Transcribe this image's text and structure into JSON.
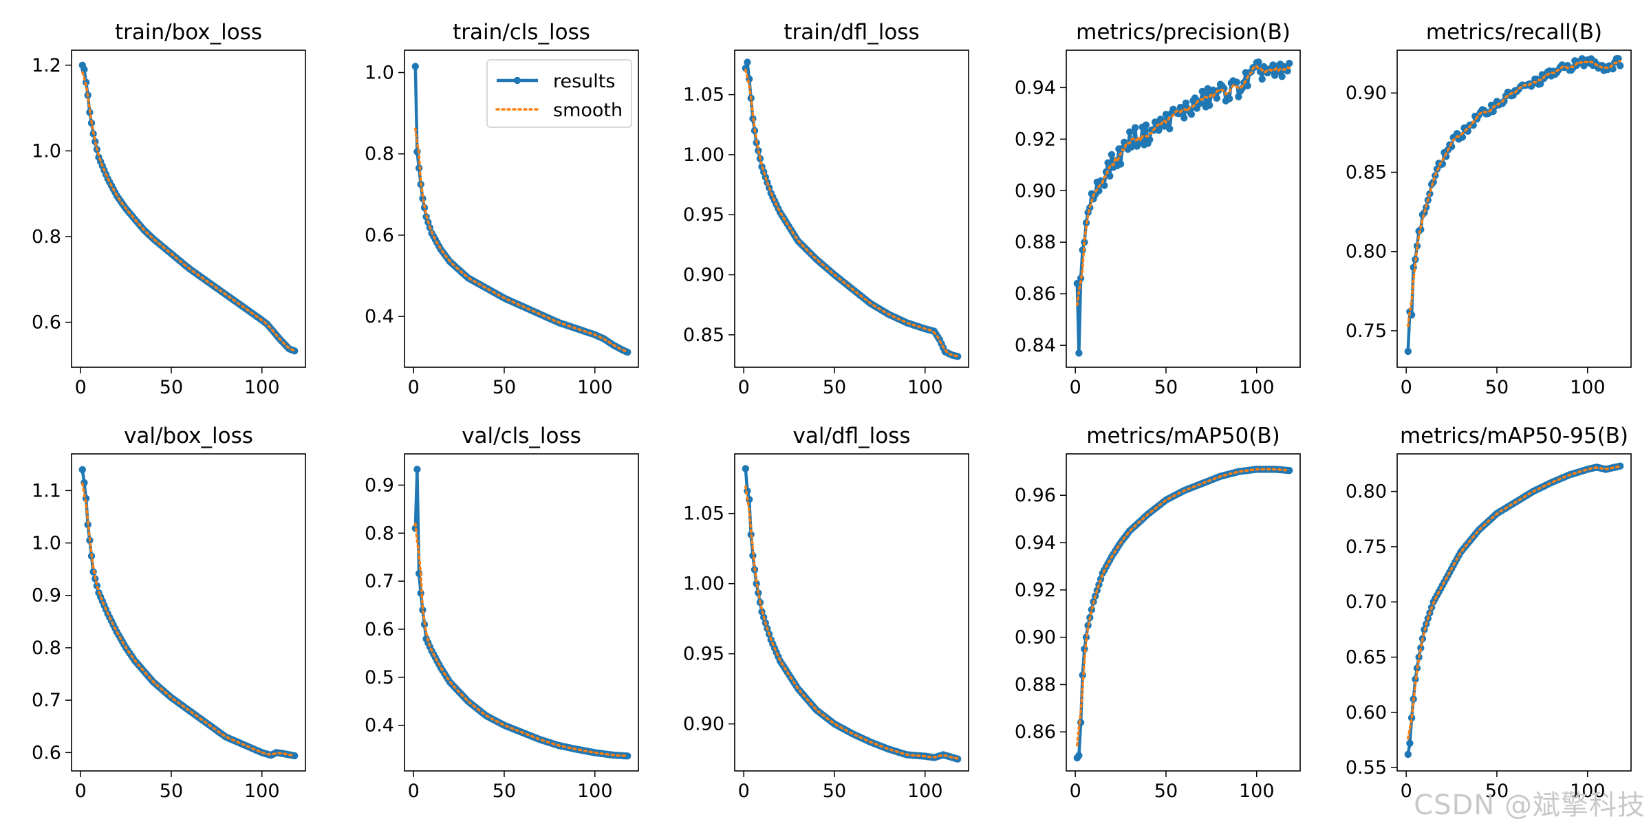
{
  "watermark": "CSDN @斌擎科技",
  "legend": {
    "results": "results",
    "smooth": "smooth"
  },
  "colors": {
    "results": "#1f77b4",
    "smooth": "#ff7f0e",
    "axes": "#000000"
  },
  "chart_data": [
    {
      "type": "line",
      "title": "train/box_loss",
      "xlim": [
        -5,
        124
      ],
      "ylim": [
        0.495,
        1.235
      ],
      "xticks": [
        0,
        50,
        100
      ],
      "yticks": [
        0.6,
        0.8,
        1.0,
        1.2
      ],
      "tick_decimals": 1,
      "n_epochs": 118,
      "series": [
        {
          "name": "results",
          "anchors": [
            [
              1,
              1.2
            ],
            [
              2,
              1.19
            ],
            [
              3,
              1.16
            ],
            [
              4,
              1.13
            ],
            [
              5,
              1.09
            ],
            [
              7,
              1.04
            ],
            [
              10,
              0.985
            ],
            [
              15,
              0.935
            ],
            [
              20,
              0.895
            ],
            [
              25,
              0.865
            ],
            [
              30,
              0.84
            ],
            [
              35,
              0.815
            ],
            [
              40,
              0.795
            ],
            [
              50,
              0.76
            ],
            [
              60,
              0.725
            ],
            [
              70,
              0.695
            ],
            [
              80,
              0.665
            ],
            [
              90,
              0.635
            ],
            [
              100,
              0.605
            ],
            [
              103,
              0.595
            ],
            [
              105,
              0.585
            ],
            [
              110,
              0.56
            ],
            [
              115,
              0.538
            ],
            [
              118,
              0.533
            ]
          ]
        }
      ]
    },
    {
      "type": "line",
      "title": "train/cls_loss",
      "xlim": [
        -5,
        124
      ],
      "ylim": [
        0.275,
        1.055
      ],
      "xticks": [
        0,
        50,
        100
      ],
      "yticks": [
        0.4,
        0.6,
        0.8,
        1.0
      ],
      "tick_decimals": 1,
      "n_epochs": 118,
      "legend": "top-right",
      "series": [
        {
          "name": "results",
          "anchors": [
            [
              1,
              1.015
            ],
            [
              2,
              0.805
            ],
            [
              3,
              0.765
            ],
            [
              4,
              0.725
            ],
            [
              5,
              0.69
            ],
            [
              7,
              0.645
            ],
            [
              10,
              0.605
            ],
            [
              15,
              0.565
            ],
            [
              20,
              0.535
            ],
            [
              25,
              0.515
            ],
            [
              30,
              0.495
            ],
            [
              40,
              0.47
            ],
            [
              50,
              0.445
            ],
            [
              60,
              0.425
            ],
            [
              70,
              0.405
            ],
            [
              80,
              0.385
            ],
            [
              90,
              0.37
            ],
            [
              100,
              0.355
            ],
            [
              105,
              0.345
            ],
            [
              110,
              0.33
            ],
            [
              115,
              0.318
            ],
            [
              118,
              0.312
            ]
          ]
        }
      ]
    },
    {
      "type": "line",
      "title": "train/dfl_loss",
      "xlim": [
        -5,
        124
      ],
      "ylim": [
        0.823,
        1.087
      ],
      "xticks": [
        0,
        50,
        100
      ],
      "yticks": [
        0.85,
        0.9,
        0.95,
        1.0,
        1.05
      ],
      "tick_decimals": 2,
      "n_epochs": 118,
      "series": [
        {
          "name": "results",
          "anchors": [
            [
              1,
              1.072
            ],
            [
              2,
              1.077
            ],
            [
              3,
              1.063
            ],
            [
              4,
              1.047
            ],
            [
              5,
              1.03
            ],
            [
              7,
              1.01
            ],
            [
              10,
              0.99
            ],
            [
              15,
              0.968
            ],
            [
              20,
              0.952
            ],
            [
              25,
              0.94
            ],
            [
              30,
              0.928
            ],
            [
              40,
              0.913
            ],
            [
              50,
              0.9
            ],
            [
              60,
              0.888
            ],
            [
              70,
              0.876
            ],
            [
              80,
              0.867
            ],
            [
              90,
              0.86
            ],
            [
              100,
              0.855
            ],
            [
              105,
              0.853
            ],
            [
              108,
              0.846
            ],
            [
              111,
              0.836
            ],
            [
              115,
              0.833
            ],
            [
              118,
              0.832
            ]
          ]
        }
      ]
    },
    {
      "type": "line",
      "title": "metrics/precision(B)",
      "xlim": [
        -5,
        124
      ],
      "ylim": [
        0.8315,
        0.9545
      ],
      "xticks": [
        0,
        50,
        100
      ],
      "yticks": [
        0.84,
        0.86,
        0.88,
        0.9,
        0.92,
        0.94
      ],
      "tick_decimals": 2,
      "n_epochs": 118,
      "noise": 0.004,
      "series": [
        {
          "name": "results",
          "anchors": [
            [
              1,
              0.864
            ],
            [
              2,
              0.837
            ],
            [
              3,
              0.866
            ],
            [
              4,
              0.877
            ],
            [
              5,
              0.88
            ],
            [
              7,
              0.895
            ],
            [
              10,
              0.898
            ],
            [
              15,
              0.905
            ],
            [
              20,
              0.91
            ],
            [
              25,
              0.914
            ],
            [
              30,
              0.92
            ],
            [
              40,
              0.922
            ],
            [
              50,
              0.927
            ],
            [
              60,
              0.931
            ],
            [
              70,
              0.935
            ],
            [
              80,
              0.938
            ],
            [
              90,
              0.94
            ],
            [
              100,
              0.946
            ],
            [
              105,
              0.947
            ],
            [
              110,
              0.945
            ],
            [
              118,
              0.947
            ]
          ]
        }
      ]
    },
    {
      "type": "line",
      "title": "metrics/recall(B)",
      "xlim": [
        -5,
        124
      ],
      "ylim": [
        0.727,
        0.927
      ],
      "xticks": [
        0,
        50,
        100
      ],
      "yticks": [
        0.75,
        0.8,
        0.85,
        0.9
      ],
      "tick_decimals": 2,
      "n_epochs": 118,
      "noise": 0.003,
      "series": [
        {
          "name": "results",
          "anchors": [
            [
              1,
              0.737
            ],
            [
              2,
              0.762
            ],
            [
              3,
              0.76
            ],
            [
              4,
              0.79
            ],
            [
              5,
              0.795
            ],
            [
              7,
              0.812
            ],
            [
              10,
              0.825
            ],
            [
              15,
              0.845
            ],
            [
              20,
              0.858
            ],
            [
              25,
              0.868
            ],
            [
              30,
              0.874
            ],
            [
              40,
              0.885
            ],
            [
              50,
              0.893
            ],
            [
              60,
              0.901
            ],
            [
              70,
              0.906
            ],
            [
              80,
              0.912
            ],
            [
              90,
              0.917
            ],
            [
              100,
              0.92
            ],
            [
              105,
              0.919
            ],
            [
              110,
              0.916
            ],
            [
              118,
              0.92
            ]
          ]
        }
      ]
    },
    {
      "type": "line",
      "title": "val/box_loss",
      "xlim": [
        -5,
        124
      ],
      "ylim": [
        0.565,
        1.17
      ],
      "xticks": [
        0,
        50,
        100
      ],
      "yticks": [
        0.6,
        0.7,
        0.8,
        0.9,
        1.0,
        1.1
      ],
      "tick_decimals": 1,
      "n_epochs": 118,
      "series": [
        {
          "name": "results",
          "anchors": [
            [
              1,
              1.14
            ],
            [
              2,
              1.115
            ],
            [
              3,
              1.085
            ],
            [
              4,
              1.035
            ],
            [
              5,
              1.005
            ],
            [
              7,
              0.945
            ],
            [
              10,
              0.905
            ],
            [
              15,
              0.865
            ],
            [
              20,
              0.83
            ],
            [
              25,
              0.8
            ],
            [
              30,
              0.775
            ],
            [
              40,
              0.735
            ],
            [
              50,
              0.705
            ],
            [
              60,
              0.68
            ],
            [
              70,
              0.655
            ],
            [
              80,
              0.63
            ],
            [
              90,
              0.615
            ],
            [
              100,
              0.6
            ],
            [
              105,
              0.595
            ],
            [
              108,
              0.6
            ],
            [
              112,
              0.598
            ],
            [
              118,
              0.594
            ]
          ]
        }
      ]
    },
    {
      "type": "line",
      "title": "val/cls_loss",
      "xlim": [
        -5,
        124
      ],
      "ylim": [
        0.305,
        0.965
      ],
      "xticks": [
        0,
        50,
        100
      ],
      "yticks": [
        0.4,
        0.5,
        0.6,
        0.7,
        0.8,
        0.9
      ],
      "tick_decimals": 1,
      "n_epochs": 118,
      "series": [
        {
          "name": "results",
          "anchors": [
            [
              1,
              0.81
            ],
            [
              2,
              0.933
            ],
            [
              3,
              0.716
            ],
            [
              4,
              0.675
            ],
            [
              5,
              0.64
            ],
            [
              7,
              0.58
            ],
            [
              10,
              0.555
            ],
            [
              15,
              0.52
            ],
            [
              20,
              0.49
            ],
            [
              25,
              0.47
            ],
            [
              30,
              0.45
            ],
            [
              40,
              0.42
            ],
            [
              50,
              0.4
            ],
            [
              60,
              0.385
            ],
            [
              70,
              0.37
            ],
            [
              80,
              0.358
            ],
            [
              90,
              0.35
            ],
            [
              100,
              0.343
            ],
            [
              110,
              0.338
            ],
            [
              118,
              0.336
            ]
          ]
        }
      ]
    },
    {
      "type": "line",
      "title": "val/dfl_loss",
      "xlim": [
        -5,
        124
      ],
      "ylim": [
        0.8665,
        1.0925
      ],
      "xticks": [
        0,
        50,
        100
      ],
      "yticks": [
        0.9,
        0.95,
        1.0,
        1.05
      ],
      "tick_decimals": 2,
      "n_epochs": 118,
      "series": [
        {
          "name": "results",
          "anchors": [
            [
              1,
              1.082
            ],
            [
              2,
              1.066
            ],
            [
              3,
              1.06
            ],
            [
              4,
              1.035
            ],
            [
              5,
              1.02
            ],
            [
              7,
              1.0
            ],
            [
              10,
              0.98
            ],
            [
              15,
              0.96
            ],
            [
              20,
              0.945
            ],
            [
              25,
              0.935
            ],
            [
              30,
              0.925
            ],
            [
              40,
              0.91
            ],
            [
              50,
              0.9
            ],
            [
              60,
              0.893
            ],
            [
              70,
              0.887
            ],
            [
              80,
              0.882
            ],
            [
              90,
              0.878
            ],
            [
              100,
              0.877
            ],
            [
              105,
              0.876
            ],
            [
              110,
              0.878
            ],
            [
              118,
              0.875
            ]
          ]
        }
      ]
    },
    {
      "type": "line",
      "title": "metrics/mAP50(B)",
      "xlim": [
        -5,
        124
      ],
      "ylim": [
        0.8435,
        0.9775
      ],
      "xticks": [
        0,
        50,
        100
      ],
      "yticks": [
        0.86,
        0.88,
        0.9,
        0.92,
        0.94,
        0.96
      ],
      "tick_decimals": 2,
      "n_epochs": 118,
      "series": [
        {
          "name": "results",
          "anchors": [
            [
              1,
              0.849
            ],
            [
              2,
              0.85
            ],
            [
              3,
              0.864
            ],
            [
              4,
              0.884
            ],
            [
              5,
              0.895
            ],
            [
              7,
              0.905
            ],
            [
              10,
              0.915
            ],
            [
              15,
              0.927
            ],
            [
              20,
              0.934
            ],
            [
              25,
              0.94
            ],
            [
              30,
              0.945
            ],
            [
              40,
              0.952
            ],
            [
              50,
              0.958
            ],
            [
              60,
              0.962
            ],
            [
              70,
              0.965
            ],
            [
              80,
              0.968
            ],
            [
              90,
              0.97
            ],
            [
              100,
              0.971
            ],
            [
              110,
              0.971
            ],
            [
              118,
              0.9705
            ]
          ]
        }
      ]
    },
    {
      "type": "line",
      "title": "metrics/mAP50-95(B)",
      "xlim": [
        -5,
        124
      ],
      "ylim": [
        0.547,
        0.834
      ],
      "xticks": [
        0,
        50,
        100
      ],
      "yticks": [
        0.55,
        0.6,
        0.65,
        0.7,
        0.75,
        0.8
      ],
      "tick_decimals": 2,
      "n_epochs": 118,
      "series": [
        {
          "name": "results",
          "anchors": [
            [
              1,
              0.562
            ],
            [
              2,
              0.572
            ],
            [
              3,
              0.595
            ],
            [
              4,
              0.612
            ],
            [
              5,
              0.63
            ],
            [
              7,
              0.65
            ],
            [
              10,
              0.675
            ],
            [
              15,
              0.7
            ],
            [
              20,
              0.715
            ],
            [
              25,
              0.73
            ],
            [
              30,
              0.745
            ],
            [
              40,
              0.765
            ],
            [
              50,
              0.78
            ],
            [
              60,
              0.79
            ],
            [
              70,
              0.8
            ],
            [
              80,
              0.808
            ],
            [
              90,
              0.815
            ],
            [
              100,
              0.82
            ],
            [
              105,
              0.822
            ],
            [
              110,
              0.82
            ],
            [
              118,
              0.823
            ]
          ]
        }
      ]
    }
  ]
}
